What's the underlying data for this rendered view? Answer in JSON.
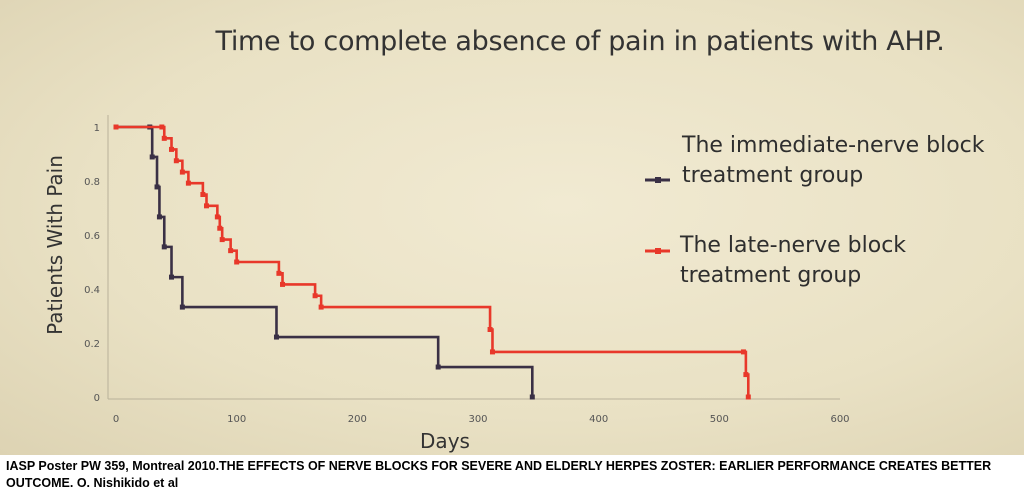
{
  "chart_data": {
    "type": "line",
    "title": "Time to complete absence of pain in patients with AHP.",
    "xlabel": "Days",
    "ylabel": "Patients With Pain",
    "xlim": [
      0,
      600
    ],
    "ylim": [
      0,
      1
    ],
    "xticks": [
      "0",
      "100",
      "200",
      "300",
      "400",
      "500",
      "600"
    ],
    "yticks": [
      "0",
      "0.2",
      "0.4",
      "0.6",
      "0.8",
      "1"
    ],
    "grid": false,
    "legend_position": "right",
    "series": [
      {
        "name": "The immediate-nerve block treatment group",
        "color": "#3a3045",
        "step": true,
        "x": [
          0,
          28,
          30,
          34,
          36,
          40,
          46,
          55,
          133,
          267,
          345
        ],
        "y": [
          1,
          1,
          0.889,
          0.778,
          0.667,
          0.556,
          0.444,
          0.333,
          0.222,
          0.111,
          0.0
        ]
      },
      {
        "name": "The late-nerve block treatment group",
        "color": "#e8382a",
        "step": true,
        "x": [
          0,
          38,
          40,
          46,
          50,
          55,
          60,
          72,
          75,
          84,
          86,
          88,
          95,
          100,
          135,
          138,
          165,
          170,
          310,
          312,
          520,
          522,
          524
        ],
        "y": [
          1,
          1,
          0.958,
          0.917,
          0.875,
          0.833,
          0.792,
          0.75,
          0.708,
          0.667,
          0.625,
          0.583,
          0.542,
          0.5,
          0.458,
          0.417,
          0.375,
          0.333,
          0.25,
          0.167,
          0.167,
          0.083,
          0.0
        ]
      }
    ]
  },
  "caption": "IASP Poster PW 359, Montreal 2010.THE EFFECTS OF NERVE BLOCKS FOR SEVERE AND ELDERLY HERPES ZOSTER: EARLIER PERFORMANCE CREATES BETTER OUTCOME. O. Nishikido et al",
  "legend": [
    {
      "line1": "The immediate-nerve block",
      "line2": "treatment group"
    },
    {
      "line1": "The late-nerve block",
      "line2": "treatment group"
    }
  ]
}
